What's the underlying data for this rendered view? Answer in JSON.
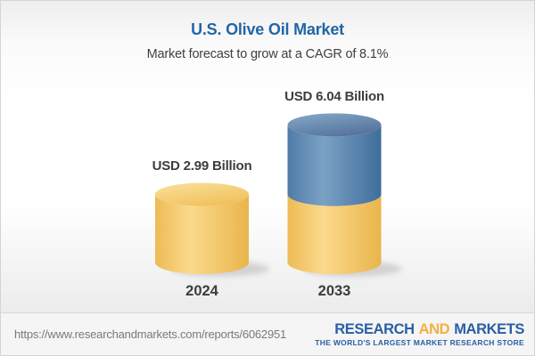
{
  "header": {
    "title": "U.S. Olive Oil Market",
    "subtitle": "Market forecast to grow at a CAGR of 8.1%"
  },
  "chart_data": {
    "type": "bar",
    "variant": "3d-cylinder",
    "title": "U.S. Olive Oil Market",
    "subtitle": "Market forecast to grow at a CAGR of 8.1%",
    "unit": "USD Billion",
    "cagr_percent": 8.1,
    "categories": [
      "2024",
      "2033"
    ],
    "values": [
      2.99,
      6.04
    ],
    "ylim": [
      0,
      6.5
    ],
    "grid": false,
    "legend": "none",
    "bars": [
      {
        "category": "2024",
        "label": "USD 2.99 Billion",
        "total": 2.99,
        "segments": [
          {
            "palette": "gold",
            "value": 2.99
          }
        ]
      },
      {
        "category": "2033",
        "label": "USD 6.04 Billion",
        "total": 6.04,
        "segments": [
          {
            "palette": "gold",
            "value": 2.99
          },
          {
            "palette": "blue",
            "value": 3.05
          }
        ]
      }
    ]
  },
  "footer": {
    "url": "https://www.researchandmarkets.com/reports/6062951",
    "logo": {
      "word1": "RESEARCH",
      "word2": "AND",
      "word3": "MARKETS",
      "tagline": "THE WORLD'S LARGEST MARKET RESEARCH STORE"
    }
  },
  "colors": {
    "theme": {
      "title-blue": "#2166a5",
      "text-dark": "#3d3d3d",
      "subtitle-gray": "#404040",
      "url-gray": "#7a7a7a",
      "logo-blue": "#2a5fa5",
      "logo-gold": "#f1b042",
      "divider": "#d9d9d9"
    },
    "palettes": {
      "gold": {
        "body": [
          "#edbb55",
          "#fbd98c",
          "#e9b54c"
        ],
        "top": [
          "#fbe19d",
          "#f0c25e"
        ]
      },
      "blue": {
        "body": [
          "#4f7ba6",
          "#7ba2c5",
          "#3f6d9b"
        ],
        "top": [
          "#85aac9",
          "#57749d"
        ]
      }
    }
  }
}
